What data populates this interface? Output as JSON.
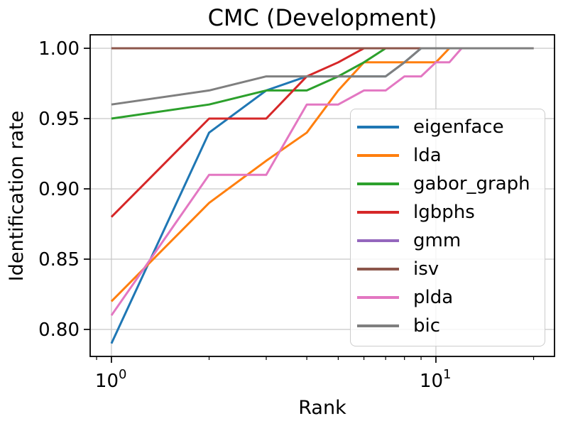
{
  "figure": {
    "background": "#ffffff"
  },
  "chart_data": {
    "type": "line",
    "title": "CMC (Development)",
    "xlabel": "Rank",
    "ylabel": "Identification rate",
    "x_scale": "log",
    "grid": true,
    "xlim": [
      0.86,
      23.2
    ],
    "ylim": [
      0.7808,
      1.0096
    ],
    "x": [
      1,
      2,
      3,
      4,
      5,
      6,
      7,
      8,
      9,
      10,
      11,
      12,
      13,
      14,
      15,
      16,
      17,
      18,
      19,
      20
    ],
    "series": [
      {
        "name": "eigenface",
        "color": "#1f77b4",
        "values": [
          0.79,
          0.94,
          0.97,
          0.98,
          0.98,
          0.98,
          0.98,
          0.99,
          1.0,
          1.0,
          1.0,
          1.0,
          1.0,
          1.0,
          1.0,
          1.0,
          1.0,
          1.0,
          1.0,
          1.0
        ]
      },
      {
        "name": "lda",
        "color": "#ff7f0e",
        "values": [
          0.82,
          0.89,
          0.92,
          0.94,
          0.97,
          0.99,
          0.99,
          0.99,
          0.99,
          0.99,
          1.0,
          1.0,
          1.0,
          1.0,
          1.0,
          1.0,
          1.0,
          1.0,
          1.0,
          1.0
        ]
      },
      {
        "name": "gabor_graph",
        "color": "#2ca02c",
        "values": [
          0.95,
          0.96,
          0.97,
          0.97,
          0.98,
          0.99,
          1.0,
          1.0,
          1.0,
          1.0,
          1.0,
          1.0,
          1.0,
          1.0,
          1.0,
          1.0,
          1.0,
          1.0,
          1.0,
          1.0
        ]
      },
      {
        "name": "lgbphs",
        "color": "#d62728",
        "values": [
          0.88,
          0.95,
          0.95,
          0.98,
          0.99,
          1.0,
          1.0,
          1.0,
          1.0,
          1.0,
          1.0,
          1.0,
          1.0,
          1.0,
          1.0,
          1.0,
          1.0,
          1.0,
          1.0,
          1.0
        ]
      },
      {
        "name": "gmm",
        "color": "#9467bd",
        "values": [
          1.0,
          1.0,
          1.0,
          1.0,
          1.0,
          1.0,
          1.0,
          1.0,
          1.0,
          1.0,
          1.0,
          1.0,
          1.0,
          1.0,
          1.0,
          1.0,
          1.0,
          1.0,
          1.0,
          1.0
        ]
      },
      {
        "name": "isv",
        "color": "#8c564b",
        "values": [
          1.0,
          1.0,
          1.0,
          1.0,
          1.0,
          1.0,
          1.0,
          1.0,
          1.0,
          1.0,
          1.0,
          1.0,
          1.0,
          1.0,
          1.0,
          1.0,
          1.0,
          1.0,
          1.0,
          1.0
        ]
      },
      {
        "name": "plda",
        "color": "#e377c2",
        "values": [
          0.81,
          0.91,
          0.91,
          0.96,
          0.96,
          0.97,
          0.97,
          0.98,
          0.98,
          0.99,
          0.99,
          1.0,
          1.0,
          1.0,
          1.0,
          1.0,
          1.0,
          1.0,
          1.0,
          1.0
        ]
      },
      {
        "name": "bic",
        "color": "#7f7f7f",
        "values": [
          0.96,
          0.97,
          0.98,
          0.98,
          0.98,
          0.98,
          0.98,
          0.99,
          1.0,
          1.0,
          1.0,
          1.0,
          1.0,
          1.0,
          1.0,
          1.0,
          1.0,
          1.0,
          1.0,
          1.0
        ]
      }
    ],
    "y_ticks": [
      {
        "value": 0.8,
        "label": "0.80"
      },
      {
        "value": 0.85,
        "label": "0.85"
      },
      {
        "value": 0.9,
        "label": "0.90"
      },
      {
        "value": 0.95,
        "label": "0.95"
      },
      {
        "value": 1.0,
        "label": "1.00"
      }
    ],
    "x_major_ticks": [
      {
        "value": 1,
        "base": "10",
        "exp": "0"
      },
      {
        "value": 10,
        "base": "10",
        "exp": "1"
      }
    ],
    "x_minor_ticks": [
      0.9,
      2,
      3,
      4,
      5,
      6,
      7,
      8,
      9,
      20
    ],
    "legend": {
      "position": "center right",
      "entries": [
        "eigenface",
        "lda",
        "gabor_graph",
        "lgbphs",
        "gmm",
        "isv",
        "plda",
        "bic"
      ]
    },
    "colors": {
      "grid": "#c6c6c6",
      "spine": "#000000",
      "tick": "#000000",
      "legend_border": "#cccccc"
    },
    "line_width": 3
  }
}
